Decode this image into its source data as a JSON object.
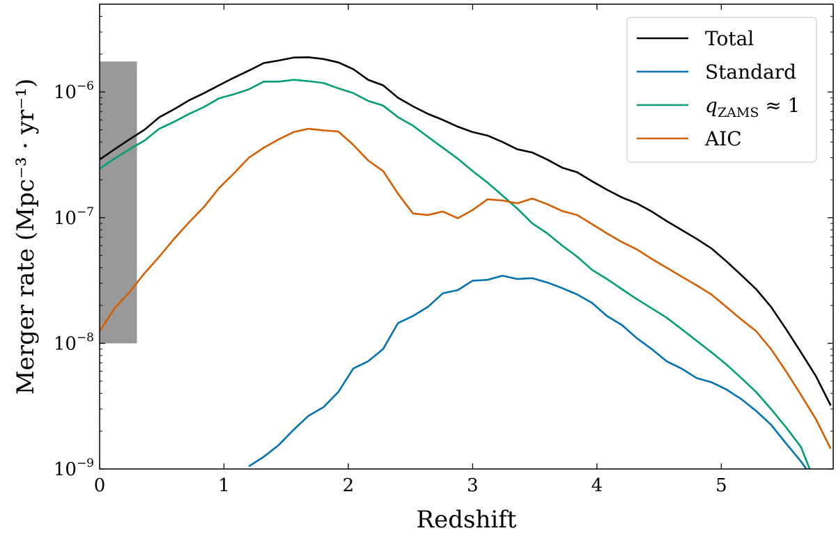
{
  "chart_data": {
    "type": "line",
    "title": "",
    "xlabel": "Redshift",
    "ylabel": "Merger rate (Mpc⁻³ · yr⁻¹)",
    "xlim": [
      0,
      5.9
    ],
    "ylim": [
      1e-09,
      5e-06
    ],
    "yscale": "log",
    "grid": false,
    "legend_position": "top-right",
    "x_ticks": [
      0,
      1,
      2,
      3,
      4,
      5
    ],
    "x_tick_labels": [
      "0",
      "1",
      "2",
      "3",
      "4",
      "5"
    ],
    "y_ticks": [
      1e-09,
      1e-08,
      1e-07,
      1e-06
    ],
    "y_tick_labels": [
      {
        "base": "10",
        "exp": "−9"
      },
      {
        "base": "10",
        "exp": "−8"
      },
      {
        "base": "10",
        "exp": "−7"
      },
      {
        "base": "10",
        "exp": "−6"
      }
    ],
    "shaded_region": {
      "x": [
        0,
        0.3
      ],
      "y": [
        1e-08,
        1.75e-06
      ],
      "color": "#999999"
    },
    "series": [
      {
        "name": "Total",
        "color": "#000000",
        "points": [
          [
            0,
            2.9e-07
          ],
          [
            0.12,
            3.5e-07
          ],
          [
            0.24,
            4.2e-07
          ],
          [
            0.36,
            5e-07
          ],
          [
            0.48,
            6.3e-07
          ],
          [
            0.6,
            7.3e-07
          ],
          [
            0.72,
            8.6e-07
          ],
          [
            0.84,
            9.8e-07
          ],
          [
            0.96,
            1.13e-06
          ],
          [
            1.08,
            1.3e-06
          ],
          [
            1.2,
            1.48e-06
          ],
          [
            1.32,
            1.7e-06
          ],
          [
            1.44,
            1.78e-06
          ],
          [
            1.56,
            1.88e-06
          ],
          [
            1.68,
            1.89e-06
          ],
          [
            1.8,
            1.83e-06
          ],
          [
            1.92,
            1.72e-06
          ],
          [
            2.04,
            1.52e-06
          ],
          [
            2.16,
            1.25e-06
          ],
          [
            2.28,
            1.13e-06
          ],
          [
            2.4,
            9e-07
          ],
          [
            2.52,
            7.7e-07
          ],
          [
            2.64,
            6.7e-07
          ],
          [
            2.76,
            6e-07
          ],
          [
            2.88,
            5.3e-07
          ],
          [
            3.0,
            4.8e-07
          ],
          [
            3.12,
            4.5e-07
          ],
          [
            3.24,
            4e-07
          ],
          [
            3.36,
            3.5e-07
          ],
          [
            3.48,
            3.3e-07
          ],
          [
            3.6,
            2.9e-07
          ],
          [
            3.72,
            2.5e-07
          ],
          [
            3.84,
            2.3e-07
          ],
          [
            3.96,
            1.95e-07
          ],
          [
            4.08,
            1.67e-07
          ],
          [
            4.2,
            1.45e-07
          ],
          [
            4.32,
            1.3e-07
          ],
          [
            4.44,
            1.12e-07
          ],
          [
            4.56,
            9.4e-08
          ],
          [
            4.68,
            8e-08
          ],
          [
            4.8,
            6.8e-08
          ],
          [
            4.92,
            5.7e-08
          ],
          [
            5.04,
            4.5e-08
          ],
          [
            5.16,
            3.5e-08
          ],
          [
            5.28,
            2.7e-08
          ],
          [
            5.4,
            1.95e-08
          ],
          [
            5.52,
            1.3e-08
          ],
          [
            5.64,
            8.5e-09
          ],
          [
            5.76,
            5.5e-09
          ],
          [
            5.88,
            3.2e-09
          ]
        ]
      },
      {
        "name": "Standard",
        "color": "#0072b2",
        "points": [
          [
            1.2,
            1.05e-09
          ],
          [
            1.32,
            1.25e-09
          ],
          [
            1.44,
            1.55e-09
          ],
          [
            1.56,
            2.05e-09
          ],
          [
            1.68,
            2.65e-09
          ],
          [
            1.8,
            3.1e-09
          ],
          [
            1.92,
            4.1e-09
          ],
          [
            2.04,
            6.3e-09
          ],
          [
            2.16,
            7.2e-09
          ],
          [
            2.28,
            9e-09
          ],
          [
            2.4,
            1.45e-08
          ],
          [
            2.52,
            1.65e-08
          ],
          [
            2.64,
            1.95e-08
          ],
          [
            2.76,
            2.5e-08
          ],
          [
            2.88,
            2.65e-08
          ],
          [
            3.0,
            3.15e-08
          ],
          [
            3.12,
            3.2e-08
          ],
          [
            3.24,
            3.45e-08
          ],
          [
            3.36,
            3.25e-08
          ],
          [
            3.48,
            3.3e-08
          ],
          [
            3.6,
            3.05e-08
          ],
          [
            3.72,
            2.75e-08
          ],
          [
            3.84,
            2.45e-08
          ],
          [
            3.96,
            2.1e-08
          ],
          [
            4.08,
            1.65e-08
          ],
          [
            4.2,
            1.4e-08
          ],
          [
            4.32,
            1.1e-08
          ],
          [
            4.44,
            9e-09
          ],
          [
            4.56,
            7.2e-09
          ],
          [
            4.68,
            6.3e-09
          ],
          [
            4.8,
            5.3e-09
          ],
          [
            4.92,
            4.9e-09
          ],
          [
            5.04,
            4.3e-09
          ],
          [
            5.16,
            3.6e-09
          ],
          [
            5.28,
            2.9e-09
          ],
          [
            5.4,
            2.25e-09
          ],
          [
            5.52,
            1.6e-09
          ],
          [
            5.64,
            1.15e-09
          ],
          [
            5.7,
            9.5e-10
          ]
        ]
      },
      {
        "name": "q_ZAMS ≈ 1",
        "color": "#009e73",
        "points": [
          [
            0,
            2.45e-07
          ],
          [
            0.12,
            2.95e-07
          ],
          [
            0.24,
            3.5e-07
          ],
          [
            0.36,
            4.1e-07
          ],
          [
            0.48,
            5.1e-07
          ],
          [
            0.6,
            5.8e-07
          ],
          [
            0.72,
            6.7e-07
          ],
          [
            0.84,
            7.6e-07
          ],
          [
            0.96,
            8.9e-07
          ],
          [
            1.08,
            9.6e-07
          ],
          [
            1.2,
            1.05e-06
          ],
          [
            1.32,
            1.21e-06
          ],
          [
            1.44,
            1.21e-06
          ],
          [
            1.56,
            1.25e-06
          ],
          [
            1.68,
            1.22e-06
          ],
          [
            1.8,
            1.18e-06
          ],
          [
            1.92,
            1.07e-06
          ],
          [
            2.04,
            9.8e-07
          ],
          [
            2.16,
            8.5e-07
          ],
          [
            2.28,
            7.8e-07
          ],
          [
            2.4,
            6.3e-07
          ],
          [
            2.52,
            5.4e-07
          ],
          [
            2.64,
            4.4e-07
          ],
          [
            2.76,
            3.6e-07
          ],
          [
            2.88,
            2.95e-07
          ],
          [
            3.0,
            2.35e-07
          ],
          [
            3.12,
            1.9e-07
          ],
          [
            3.24,
            1.5e-07
          ],
          [
            3.36,
            1.18e-07
          ],
          [
            3.48,
            9e-08
          ],
          [
            3.6,
            7.5e-08
          ],
          [
            3.72,
            6e-08
          ],
          [
            3.84,
            4.9e-08
          ],
          [
            3.96,
            3.85e-08
          ],
          [
            4.08,
            3.25e-08
          ],
          [
            4.2,
            2.7e-08
          ],
          [
            4.32,
            2.25e-08
          ],
          [
            4.44,
            1.9e-08
          ],
          [
            4.56,
            1.6e-08
          ],
          [
            4.68,
            1.3e-08
          ],
          [
            4.8,
            1.05e-08
          ],
          [
            4.92,
            8.5e-09
          ],
          [
            5.04,
            6.8e-09
          ],
          [
            5.16,
            5.3e-09
          ],
          [
            5.28,
            4.1e-09
          ],
          [
            5.4,
            3e-09
          ],
          [
            5.52,
            2.15e-09
          ],
          [
            5.64,
            1.5e-09
          ],
          [
            5.72,
            9.5e-10
          ]
        ]
      },
      {
        "name": "AIC",
        "color": "#d55e00",
        "points": [
          [
            0,
            1.25e-08
          ],
          [
            0.12,
            1.9e-08
          ],
          [
            0.24,
            2.55e-08
          ],
          [
            0.36,
            3.6e-08
          ],
          [
            0.48,
            4.9e-08
          ],
          [
            0.6,
            6.8e-08
          ],
          [
            0.72,
            9.2e-08
          ],
          [
            0.84,
            1.22e-07
          ],
          [
            0.96,
            1.72e-07
          ],
          [
            1.08,
            2.25e-07
          ],
          [
            1.2,
            3e-07
          ],
          [
            1.32,
            3.6e-07
          ],
          [
            1.44,
            4.2e-07
          ],
          [
            1.56,
            4.8e-07
          ],
          [
            1.68,
            5.1e-07
          ],
          [
            1.8,
            4.95e-07
          ],
          [
            1.92,
            4.85e-07
          ],
          [
            2.04,
            3.8e-07
          ],
          [
            2.16,
            2.85e-07
          ],
          [
            2.28,
            2.35e-07
          ],
          [
            2.4,
            1.55e-07
          ],
          [
            2.52,
            1.08e-07
          ],
          [
            2.64,
            1.05e-07
          ],
          [
            2.76,
            1.12e-07
          ],
          [
            2.88,
            9.9e-08
          ],
          [
            3.0,
            1.15e-07
          ],
          [
            3.12,
            1.4e-07
          ],
          [
            3.24,
            1.37e-07
          ],
          [
            3.36,
            1.3e-07
          ],
          [
            3.48,
            1.42e-07
          ],
          [
            3.6,
            1.28e-07
          ],
          [
            3.72,
            1.13e-07
          ],
          [
            3.84,
            1.05e-07
          ],
          [
            3.96,
            8.9e-08
          ],
          [
            4.08,
            7.5e-08
          ],
          [
            4.2,
            6.4e-08
          ],
          [
            4.32,
            5.6e-08
          ],
          [
            4.44,
            4.7e-08
          ],
          [
            4.56,
            4e-08
          ],
          [
            4.68,
            3.4e-08
          ],
          [
            4.8,
            2.9e-08
          ],
          [
            4.92,
            2.45e-08
          ],
          [
            5.04,
            1.95e-08
          ],
          [
            5.16,
            1.55e-08
          ],
          [
            5.28,
            1.25e-08
          ],
          [
            5.4,
            9e-09
          ],
          [
            5.52,
            6e-09
          ],
          [
            5.64,
            3.9e-09
          ],
          [
            5.76,
            2.5e-09
          ],
          [
            5.88,
            1.45e-09
          ]
        ]
      }
    ],
    "legend": [
      {
        "label": "Total",
        "color": "#000000",
        "label_type": "text"
      },
      {
        "label": "Standard",
        "color": "#0072b2",
        "label_type": "text"
      },
      {
        "label": "q",
        "subscript": "ZAMS",
        "rest": " ≈ 1",
        "color": "#009e73",
        "label_type": "math"
      },
      {
        "label": "AIC",
        "color": "#d55e00",
        "label_type": "text"
      }
    ]
  }
}
